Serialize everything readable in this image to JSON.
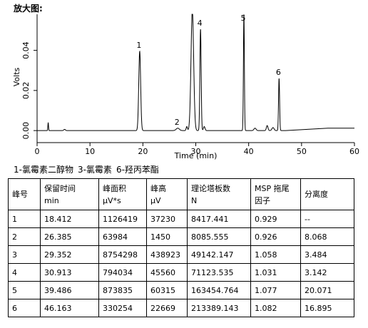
{
  "heading": "放大图:",
  "chart_data": {
    "type": "line",
    "title": "",
    "xlabel": "Time (min)",
    "ylabel": "Volts",
    "xlim": [
      0,
      60
    ],
    "ylim": [
      -0.006,
      0.058
    ],
    "xticks": [
      0,
      10,
      20,
      30,
      40,
      50,
      60
    ],
    "yticks": [
      0.0,
      0.02,
      0.04
    ],
    "ytick_labels": [
      "0.00",
      "0.02",
      "0.04"
    ],
    "grid": false,
    "peaks": [
      {
        "label": "1",
        "rt": 19.4,
        "height": 0.0395,
        "width": 0.18
      },
      {
        "label": "2",
        "rt": 26.6,
        "height": 0.0012,
        "width": 0.3
      },
      {
        "label": "",
        "rt": 29.35,
        "height": 0.06,
        "width": 0.25
      },
      {
        "label": "4",
        "rt": 30.9,
        "height": 0.0505,
        "width": 0.12
      },
      {
        "label": "5",
        "rt": 39.1,
        "height": 0.058,
        "width": 0.09
      },
      {
        "label": "6",
        "rt": 45.75,
        "height": 0.026,
        "width": 0.1
      }
    ],
    "minor_peaks": [
      {
        "rt": 2.1,
        "height": 0.004,
        "width": 0.06
      },
      {
        "rt": 5.2,
        "height": 0.0006,
        "width": 0.15
      },
      {
        "rt": 28.3,
        "height": 0.002,
        "width": 0.12
      },
      {
        "rt": 31.6,
        "height": 0.002,
        "width": 0.15
      },
      {
        "rt": 41.2,
        "height": 0.0012,
        "width": 0.2
      },
      {
        "rt": 43.5,
        "height": 0.0025,
        "width": 0.15
      },
      {
        "rt": 44.6,
        "height": 0.0015,
        "width": 0.2
      }
    ],
    "baseline_end": {
      "rise_start": 47.0,
      "rise_end": 55.0,
      "rise": 0.0012
    }
  },
  "legend": [
    "1-氯霉素二醇物",
    "3-氯霉素",
    "6-羟丙苯酯"
  ],
  "table": {
    "headers": [
      [
        "峰号"
      ],
      [
        "保留时间",
        "min"
      ],
      [
        "峰面积",
        "μV*s"
      ],
      [
        "峰高",
        "μV"
      ],
      [
        "理论塔板数",
        "N"
      ],
      [
        "MSP 拖尾",
        "因子"
      ],
      [
        "分离度"
      ]
    ],
    "rows": [
      [
        "1",
        "18.412",
        "1126419",
        "37230",
        "8417.441",
        "0.929",
        "--"
      ],
      [
        "2",
        "26.385",
        "63984",
        "1450",
        "8085.555",
        "0.926",
        "8.068"
      ],
      [
        "3",
        "29.352",
        "8754298",
        "438923",
        "49142.147",
        "1.058",
        "3.484"
      ],
      [
        "4",
        "30.913",
        "794034",
        "45560",
        "71123.535",
        "1.031",
        "3.142"
      ],
      [
        "5",
        "39.486",
        "873835",
        "60315",
        "163454.764",
        "1.077",
        "20.071"
      ],
      [
        "6",
        "46.163",
        "330254",
        "22669",
        "213389.143",
        "1.082",
        "16.895"
      ]
    ]
  }
}
